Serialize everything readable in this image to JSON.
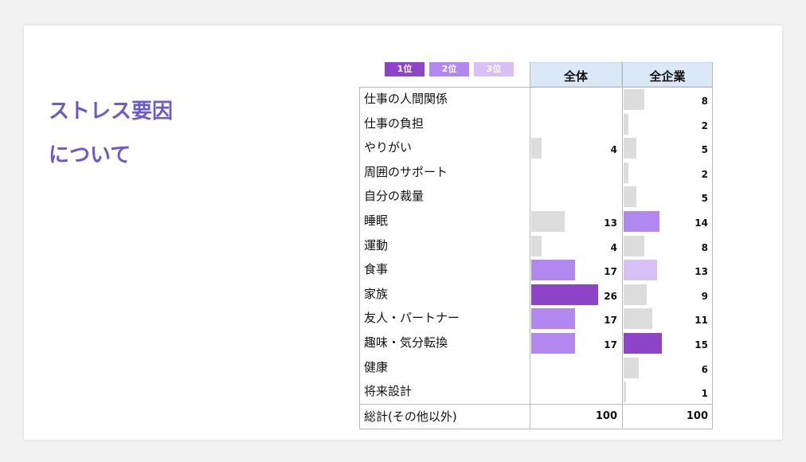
{
  "heading": {
    "line1": "ストレス要因",
    "line2": "について"
  },
  "legend": [
    {
      "label": "1位",
      "color": "#8e44c9"
    },
    {
      "label": "2位",
      "color": "#b288f0"
    },
    {
      "label": "3位",
      "color": "#d8c0f6"
    }
  ],
  "neutral_color": "#dcdcdc",
  "chart_data": {
    "type": "table",
    "columns": [
      "全体",
      "全企業"
    ],
    "categories": [
      "仕事の人間関係",
      "仕事の負担",
      "やりがい",
      "周囲のサポート",
      "自分の裁量",
      "睡眠",
      "運動",
      "食事",
      "家族",
      "友人・パートナー",
      "趣味・気分転換",
      "健康",
      "将来設計"
    ],
    "series": [
      {
        "name": "全体",
        "values": [
          null,
          null,
          4,
          null,
          null,
          13,
          4,
          17,
          26,
          17,
          17,
          null,
          null
        ],
        "rank": [
          0,
          0,
          0,
          0,
          0,
          0,
          0,
          2,
          1,
          2,
          2,
          0,
          0
        ]
      },
      {
        "name": "全企業",
        "values": [
          8,
          2,
          5,
          2,
          5,
          14,
          8,
          13,
          9,
          11,
          15,
          6,
          1
        ],
        "rank": [
          0,
          0,
          0,
          0,
          0,
          2,
          0,
          3,
          0,
          0,
          1,
          0,
          0
        ]
      }
    ],
    "total_label": "総計(その他以外)",
    "totals": [
      100,
      100
    ],
    "bar_scale_max": 26
  }
}
